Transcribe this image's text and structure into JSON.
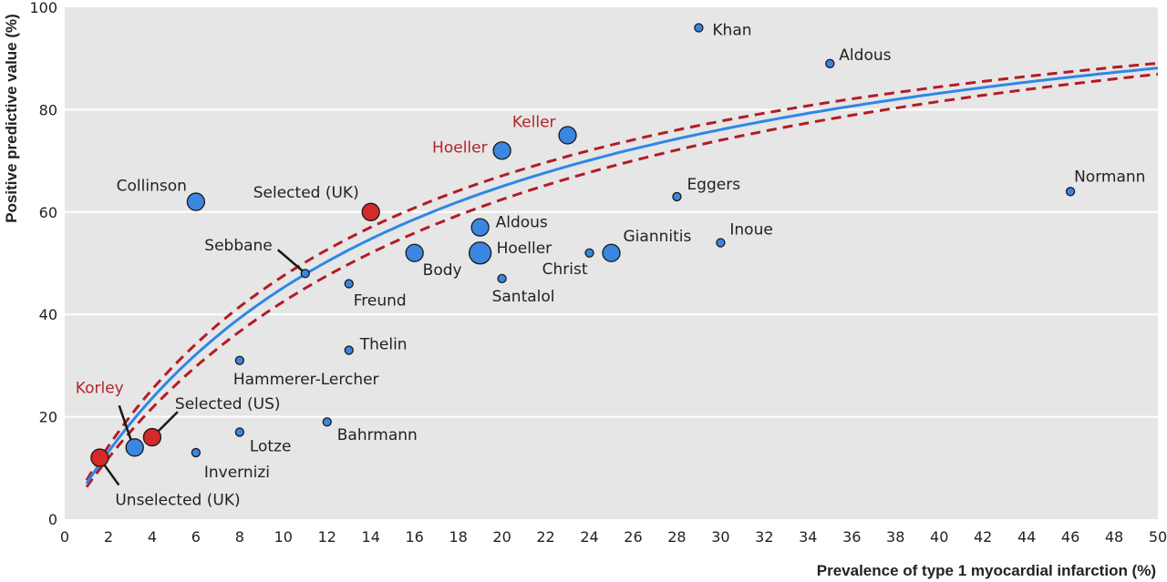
{
  "chart_data": {
    "type": "scatter",
    "title": "",
    "xlabel": "Prevalence of type 1 myocardial infarction (%)",
    "ylabel": "Positive predictive value (%)",
    "xlim": [
      0,
      50
    ],
    "ylim": [
      0,
      100
    ],
    "xticks": [
      0,
      2,
      4,
      6,
      8,
      10,
      12,
      14,
      16,
      18,
      20,
      22,
      24,
      26,
      28,
      30,
      32,
      34,
      36,
      38,
      40,
      42,
      44,
      46,
      48,
      50
    ],
    "yticks": [
      0,
      20,
      40,
      60,
      80,
      100
    ],
    "grid": "horizontal",
    "colors": {
      "background": "#e6e6e6",
      "study_point": "#3a86e0",
      "highlight_point": "#d42a2a",
      "fit_line": "#2f86e6",
      "ci_line": "#b31c24",
      "red_label": "#b3242a"
    },
    "series": [
      {
        "name": "",
        "points": [
          {
            "label": "Khan",
            "x": 29,
            "y": 96,
            "size": "small",
            "color": "blue",
            "label_color": "black"
          },
          {
            "label": "Aldous",
            "x": 35,
            "y": 89,
            "size": "small",
            "color": "blue",
            "label_color": "black"
          },
          {
            "label": "Keller",
            "x": 23,
            "y": 75,
            "size": "large",
            "color": "blue",
            "label_color": "red"
          },
          {
            "label": "Hoeller",
            "x": 20,
            "y": 72,
            "size": "large",
            "color": "blue",
            "label_color": "red"
          },
          {
            "label": "Normann",
            "x": 46,
            "y": 64,
            "size": "small",
            "color": "blue",
            "label_color": "black"
          },
          {
            "label": "Eggers",
            "x": 28,
            "y": 63,
            "size": "small",
            "color": "blue",
            "label_color": "black"
          },
          {
            "label": "Collinson",
            "x": 6,
            "y": 62,
            "size": "large",
            "color": "blue",
            "label_color": "black"
          },
          {
            "label": "Selected (UK)",
            "x": 14,
            "y": 60,
            "size": "large",
            "color": "red",
            "label_color": "black"
          },
          {
            "label": "Aldous",
            "x": 19,
            "y": 57,
            "size": "large",
            "color": "blue",
            "label_color": "black"
          },
          {
            "label": "Inoue",
            "x": 30,
            "y": 54,
            "size": "small",
            "color": "blue",
            "label_color": "black"
          },
          {
            "label": "Giannitis",
            "x": 25,
            "y": 52,
            "size": "large",
            "color": "blue",
            "label_color": "black"
          },
          {
            "label": "Christ",
            "x": 24,
            "y": 52,
            "size": "small",
            "color": "blue",
            "label_color": "black"
          },
          {
            "label": "Hoeller",
            "x": 19,
            "y": 52,
            "size": "xlarge",
            "color": "blue",
            "label_color": "black"
          },
          {
            "label": "Body",
            "x": 16,
            "y": 52,
            "size": "large",
            "color": "blue",
            "label_color": "black"
          },
          {
            "label": "Sebbane",
            "x": 11,
            "y": 48,
            "size": "small",
            "color": "blue",
            "label_color": "black"
          },
          {
            "label": "Santalol",
            "x": 20,
            "y": 47,
            "size": "small",
            "color": "blue",
            "label_color": "black"
          },
          {
            "label": "Freund",
            "x": 13,
            "y": 46,
            "size": "small",
            "color": "blue",
            "label_color": "black"
          },
          {
            "label": "Thelin",
            "x": 13,
            "y": 33,
            "size": "small",
            "color": "blue",
            "label_color": "black"
          },
          {
            "label": "Hammerer-Lercher",
            "x": 8,
            "y": 31,
            "size": "small",
            "color": "blue",
            "label_color": "black"
          },
          {
            "label": "Bahrmann",
            "x": 12,
            "y": 19,
            "size": "small",
            "color": "blue",
            "label_color": "black"
          },
          {
            "label": "Lotze",
            "x": 8,
            "y": 17,
            "size": "small",
            "color": "blue",
            "label_color": "black"
          },
          {
            "label": "Selected (US)",
            "x": 4,
            "y": 16,
            "size": "large",
            "color": "red",
            "label_color": "black"
          },
          {
            "label": "Korley",
            "x": 3.2,
            "y": 14,
            "size": "large",
            "color": "blue",
            "label_color": "red"
          },
          {
            "label": "Invernizi",
            "x": 6,
            "y": 13,
            "size": "small",
            "color": "blue",
            "label_color": "black"
          },
          {
            "label": "Unselected (UK)",
            "x": 1.6,
            "y": 12,
            "size": "large",
            "color": "red",
            "label_color": "black"
          }
        ]
      }
    ],
    "fit_curve": {
      "style": "solid",
      "color": "blue"
    },
    "ci_curves": {
      "style": "dashed",
      "color": "red"
    }
  }
}
